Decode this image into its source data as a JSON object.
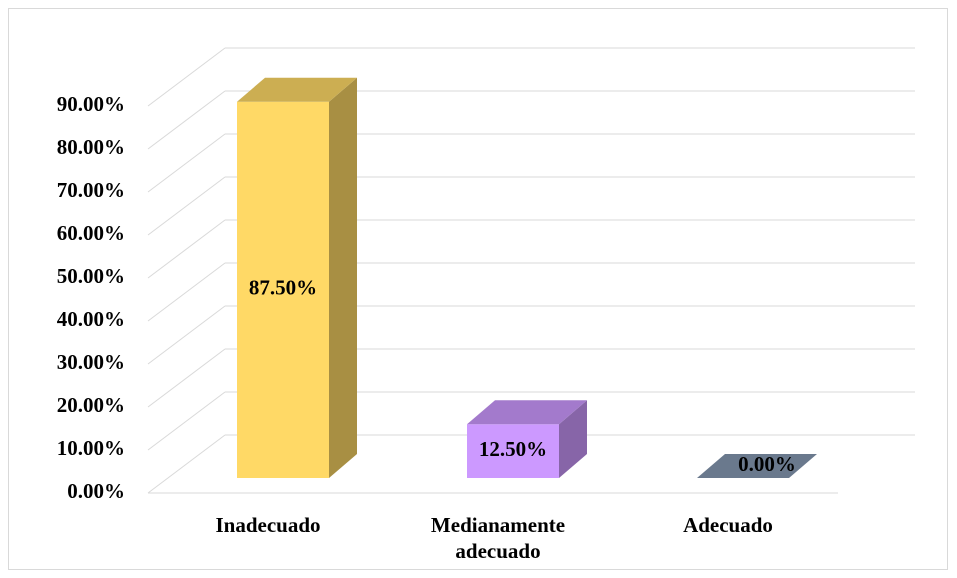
{
  "chart_data": {
    "type": "bar3d",
    "categories": [
      "Inadecuado",
      "Medianamente adecuado",
      "Adecuado"
    ],
    "values": [
      87.5,
      12.5,
      0
    ],
    "value_labels": [
      "87.50%",
      "12.50%",
      "0.00%"
    ],
    "colors": [
      "#FFD966",
      "#CC99FF",
      "#8497B0"
    ],
    "ylim": [
      0,
      90
    ],
    "yticks": [
      {
        "value": 0,
        "label": "0.00%"
      },
      {
        "value": 10,
        "label": "10.00%"
      },
      {
        "value": 20,
        "label": "20.00%"
      },
      {
        "value": 30,
        "label": "30.00%"
      },
      {
        "value": 40,
        "label": "40.00%"
      },
      {
        "value": 50,
        "label": "50.00%"
      },
      {
        "value": 60,
        "label": "60.00%"
      },
      {
        "value": 70,
        "label": "70.00%"
      },
      {
        "value": 80,
        "label": "80.00%"
      },
      {
        "value": 90,
        "label": "90.00%"
      }
    ],
    "grid": true
  }
}
